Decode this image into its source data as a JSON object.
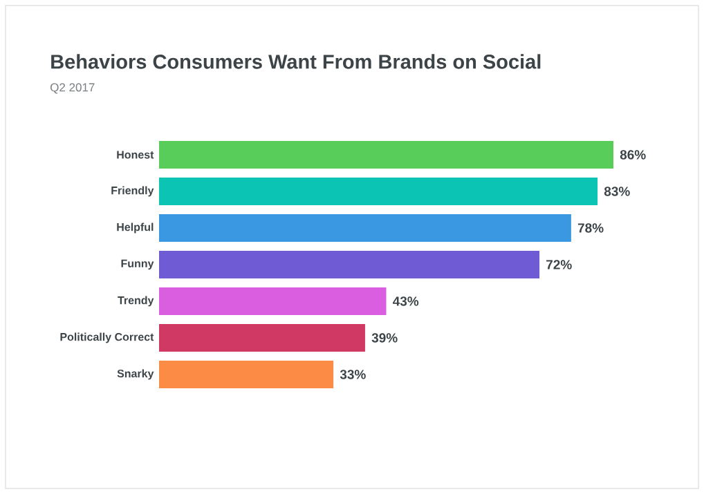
{
  "chart_data": {
    "type": "bar",
    "orientation": "horizontal",
    "title": "Behaviors Consumers Want From Brands on Social",
    "subtitle": "Q2 2017",
    "categories": [
      "Honest",
      "Friendly",
      "Helpful",
      "Funny",
      "Trendy",
      "Politically Correct",
      "Snarky"
    ],
    "values": [
      86,
      83,
      78,
      72,
      43,
      39,
      33
    ],
    "value_labels": [
      "86%",
      "83%",
      "78%",
      "72%",
      "43%",
      "39%",
      "33%"
    ],
    "colors": [
      "#59cd5a",
      "#0bc4b4",
      "#3a97e2",
      "#6f5bd3",
      "#d95fe0",
      "#cf3963",
      "#fb8b45"
    ]
  }
}
